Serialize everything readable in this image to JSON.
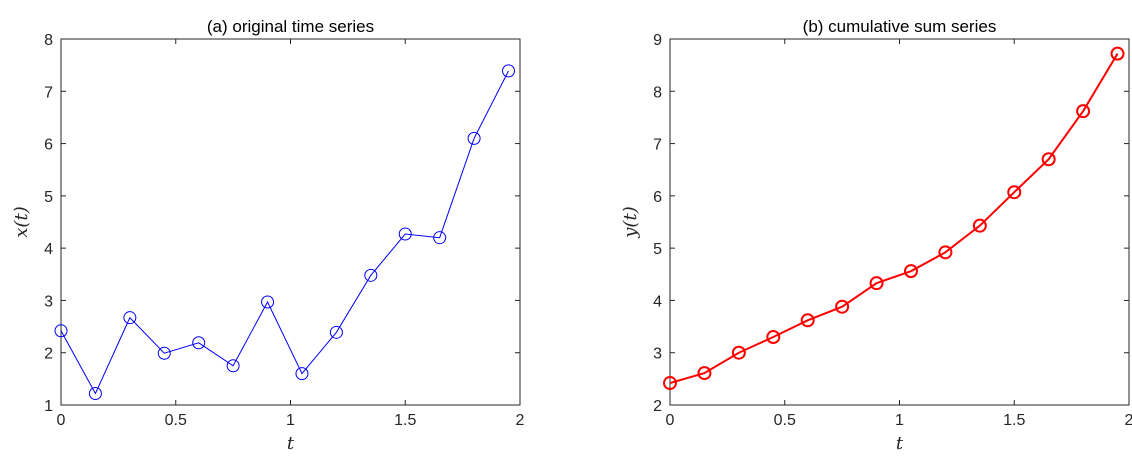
{
  "chart_data": [
    {
      "type": "line",
      "title": "(a) original time series",
      "xlabel": "t",
      "ylabel": "x(t)",
      "xlim": [
        0,
        2
      ],
      "ylim": [
        1,
        8
      ],
      "xticks": [
        "0",
        "0.5",
        "1",
        "1.5",
        "2"
      ],
      "yticks": [
        "1",
        "2",
        "3",
        "4",
        "5",
        "6",
        "7",
        "8"
      ],
      "grid": false,
      "series": [
        {
          "color": "#0000ff",
          "marker": "circle",
          "x": [
            0,
            0.15,
            0.3,
            0.45,
            0.6,
            0.75,
            0.9,
            1.05,
            1.2,
            1.35,
            1.5,
            1.65,
            1.8,
            1.95
          ],
          "y": [
            2.42,
            1.22,
            2.67,
            1.99,
            2.19,
            1.75,
            2.97,
            1.6,
            2.39,
            3.48,
            4.27,
            4.2,
            6.1,
            7.39
          ]
        }
      ]
    },
    {
      "type": "line",
      "title": "(b) cumulative sum series",
      "xlabel": "t",
      "ylabel": "y(t)",
      "xlim": [
        0,
        2
      ],
      "ylim": [
        2,
        9
      ],
      "xticks": [
        "0",
        "0.5",
        "1",
        "1.5",
        "2"
      ],
      "yticks": [
        "2",
        "3",
        "4",
        "5",
        "6",
        "7",
        "8",
        "9"
      ],
      "grid": false,
      "series": [
        {
          "color": "#ff0000",
          "marker": "circle",
          "x": [
            0,
            0.15,
            0.3,
            0.45,
            0.6,
            0.75,
            0.9,
            1.05,
            1.2,
            1.35,
            1.5,
            1.65,
            1.8,
            1.95
          ],
          "y": [
            2.42,
            2.61,
            3.0,
            3.3,
            3.62,
            3.88,
            4.33,
            4.56,
            4.92,
            5.43,
            6.07,
            6.7,
            7.62,
            8.72
          ]
        }
      ]
    }
  ]
}
